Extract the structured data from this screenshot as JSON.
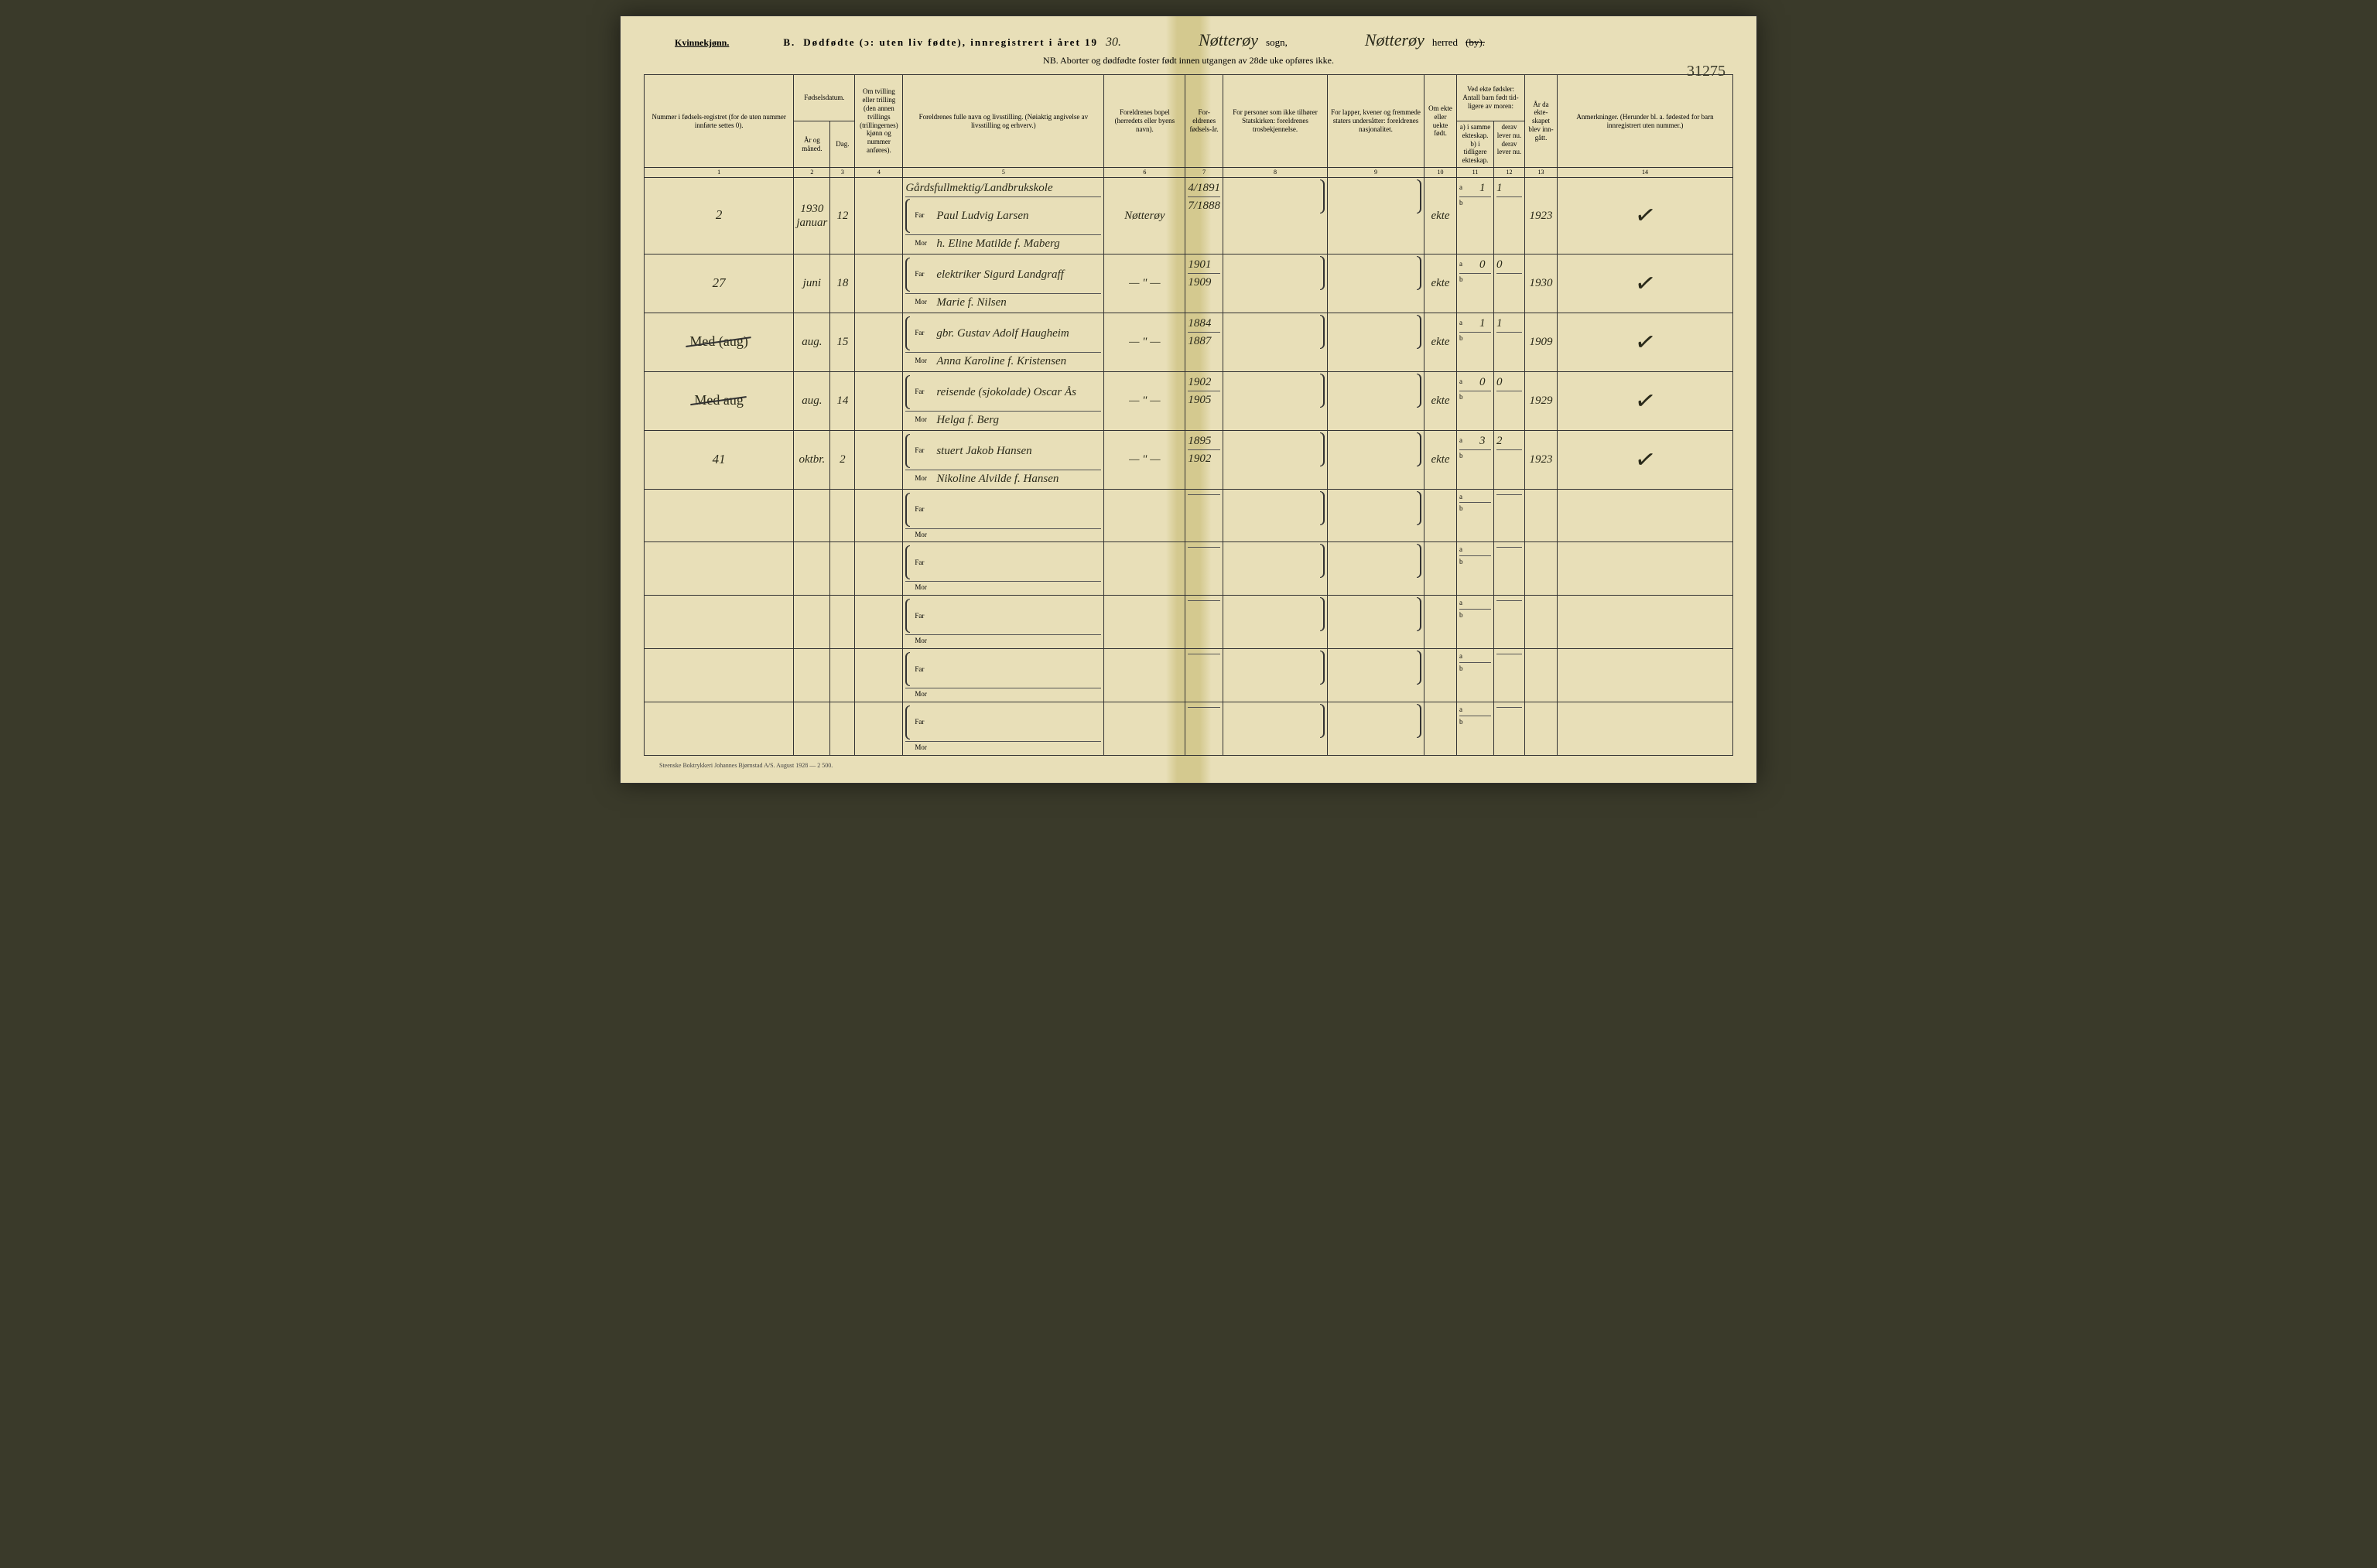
{
  "header": {
    "gender": "Kvinnekjønn.",
    "section_letter": "B.",
    "title_main": "Dødfødte (ɔ: uten liv fødte), innregistrert i året 19",
    "year_suffix": "30.",
    "sogn_hand": "Nøtterøy",
    "sogn_label": "sogn,",
    "herred_hand": "Nøtterøy",
    "herred_label": "herred",
    "herred_by": "(by).",
    "nb_line": "NB. Aborter og dødfødte foster født innen utgangen av 28de uke opføres ikke.",
    "page_number": "31275"
  },
  "columns": {
    "c1": "Nummer i fødsels-registret (for de uten nummer innførte settes 0).",
    "c2_top": "Fødselsdatum.",
    "c2a": "År og måned.",
    "c2b": "Dag.",
    "c3": "Om tvilling eller trilling (den annen tvillings (trillingernes) kjønn og nummer anføres).",
    "c4": "Foreldrenes fulle navn og livsstilling. (Nøiaktig angivelse av livsstilling og erhverv.)",
    "c5": "Foreldrenes bopel (herredets eller byens navn).",
    "c6": "For-eldrenes fødsels-år.",
    "c7": "For personer som ikke tilhører Statskirken: foreldrenes trosbekjennelse.",
    "c8": "For lapper, kvener og fremmede staters undersåtter: foreldrenes nasjonalitet.",
    "c9": "Om ekte eller uekte født.",
    "c10_top": "Ved ekte fødsler: Antall barn født tid-ligere av moren:",
    "c10a": "a) i samme ekteskap.",
    "c10b": "b) i tidligere ekteskap.",
    "c11a": "derav lever nu.",
    "c11b": "derav lever nu.",
    "c12": "År da ekte-skapet blev inn-gått.",
    "c13": "Anmerkninger. (Herunder bl. a. fødested for barn innregistrert uten nummer.)"
  },
  "colnums": [
    "1",
    "2",
    "3",
    "4",
    "5",
    "6",
    "7",
    "8",
    "9",
    "10",
    "11",
    "12",
    "13",
    "14"
  ],
  "rows": [
    {
      "num": "2",
      "year_line": "1930",
      "month": "januar",
      "day": "12",
      "occupation": "Gårdsfullmektig/Landbrukskole",
      "far": "Paul Ludvig Larsen",
      "mor": "h. Eline Matilde f. Maberg",
      "bopel": "Nøtterøy",
      "far_year": "4/1891",
      "mor_year": "7/1888",
      "ekte": "ekte",
      "a_samme": "1",
      "a_lever": "1",
      "year_married": "1923",
      "check": "✓"
    },
    {
      "num": "27",
      "month": "juni",
      "day": "18",
      "far": "elektriker Sigurd Landgraff",
      "mor": "Marie f. Nilsen",
      "bopel": "— \" —",
      "far_year": "1901",
      "mor_year": "1909",
      "ekte": "ekte",
      "a_samme": "0",
      "a_lever": "0",
      "year_married": "1930",
      "check": "✓"
    },
    {
      "margin": "Med (aug)",
      "margin_strike": true,
      "num": "",
      "month": "aug.",
      "day": "15",
      "far": "gbr. Gustav Adolf Haugheim",
      "mor": "Anna Karoline f. Kristensen",
      "bopel": "— \" —",
      "far_year": "1884",
      "mor_year": "1887",
      "ekte": "ekte",
      "a_samme": "1",
      "a_lever": "1",
      "year_married": "1909",
      "check": "✓"
    },
    {
      "margin": "Med aug",
      "margin_strike": true,
      "num": "",
      "month": "aug.",
      "day": "14",
      "far": "reisende (sjokolade) Oscar Ås",
      "mor": "Helga f. Berg",
      "bopel": "— \" —",
      "far_year": "1902",
      "mor_year": "1905",
      "ekte": "ekte",
      "a_samme": "0",
      "a_lever": "0",
      "year_married": "1929",
      "check": "✓"
    },
    {
      "num": "41",
      "month": "oktbr.",
      "day": "2",
      "far": "stuert Jakob Hansen",
      "mor": "Nikoline Alvilde f. Hansen",
      "bopel": "— \" —",
      "far_year": "1895",
      "mor_year": "1902",
      "ekte": "ekte",
      "a_samme": "3",
      "a_lever": "2",
      "year_married": "1923",
      "check": "✓"
    }
  ],
  "empty_rows": 5,
  "footer": "Steenske Boktrykkeri Johannes Bjørnstad A/S.  August 1928 — 2 500.",
  "labels": {
    "far": "Far",
    "mor": "Mor",
    "a": "a",
    "b": "b"
  },
  "colwidths": {
    "c1": "45px",
    "c2a": "40px",
    "c2b": "30px",
    "c3": "60px",
    "c4": "250px",
    "c5": "100px",
    "c6": "45px",
    "c7": "130px",
    "c8": "120px",
    "c9": "40px",
    "c10": "55px",
    "c11": "38px",
    "c12": "40px",
    "c13": "150px"
  }
}
